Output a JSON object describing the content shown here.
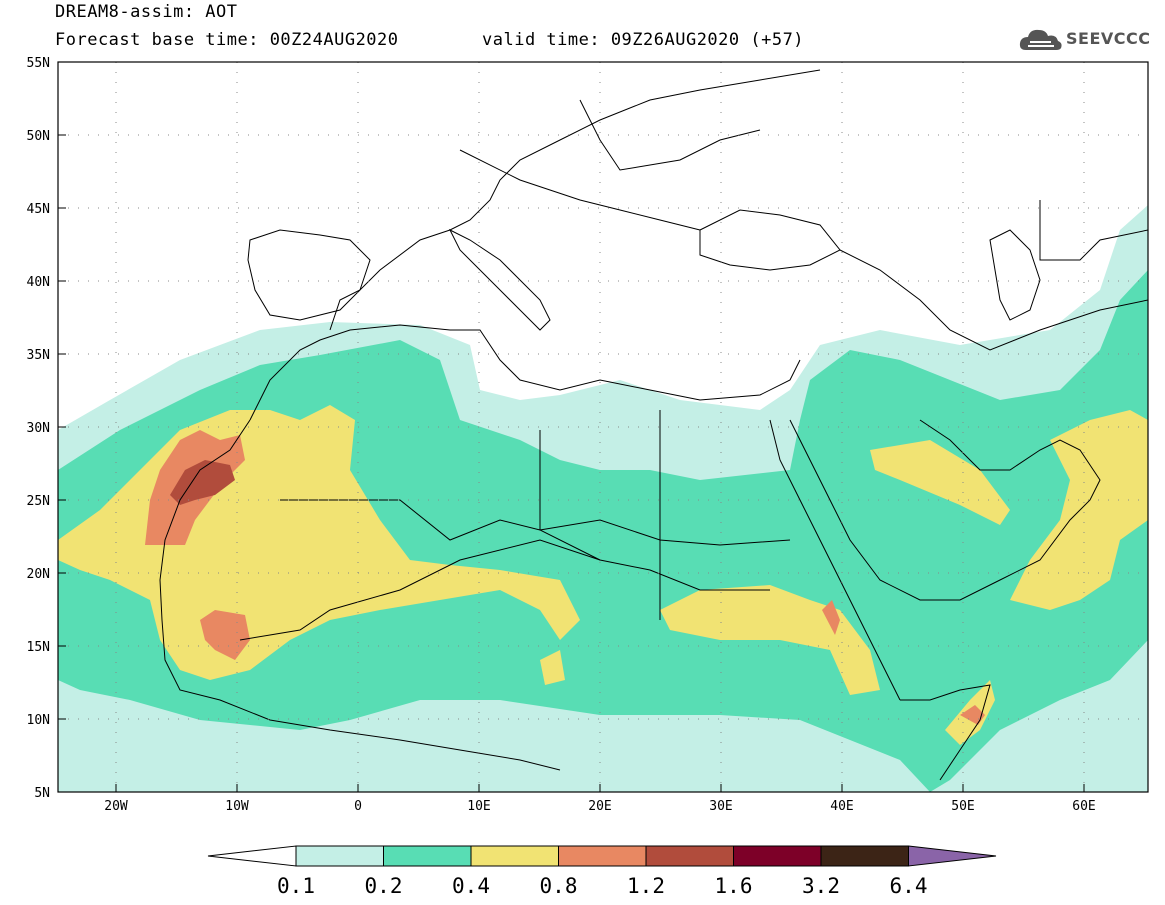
{
  "header": {
    "title": "DREAM8-assim: AOT",
    "base_time": "Forecast base time: 00Z24AUG2020",
    "valid_time": "valid time: 09Z26AUG2020 (+57)"
  },
  "logo": {
    "text": "SEEVCCC",
    "icon": "cloud-icon"
  },
  "axes": {
    "lat_labels": [
      "55N",
      "50N",
      "45N",
      "40N",
      "35N",
      "30N",
      "25N",
      "20N",
      "15N",
      "10N",
      "5N"
    ],
    "lon_labels": [
      "20W",
      "10W",
      "0",
      "10E",
      "20E",
      "30E",
      "40E",
      "50E",
      "60E"
    ]
  },
  "colorbar": {
    "labels": [
      "0.1",
      "0.2",
      "0.4",
      "0.8",
      "1.2",
      "1.6",
      "3.2",
      "6.4"
    ],
    "colors": [
      "#ffffff",
      "#c4efe6",
      "#58ddb4",
      "#f1e373",
      "#e88862",
      "#b14c3c",
      "#7d0028",
      "#3c2416",
      "#8a64a8"
    ]
  }
}
